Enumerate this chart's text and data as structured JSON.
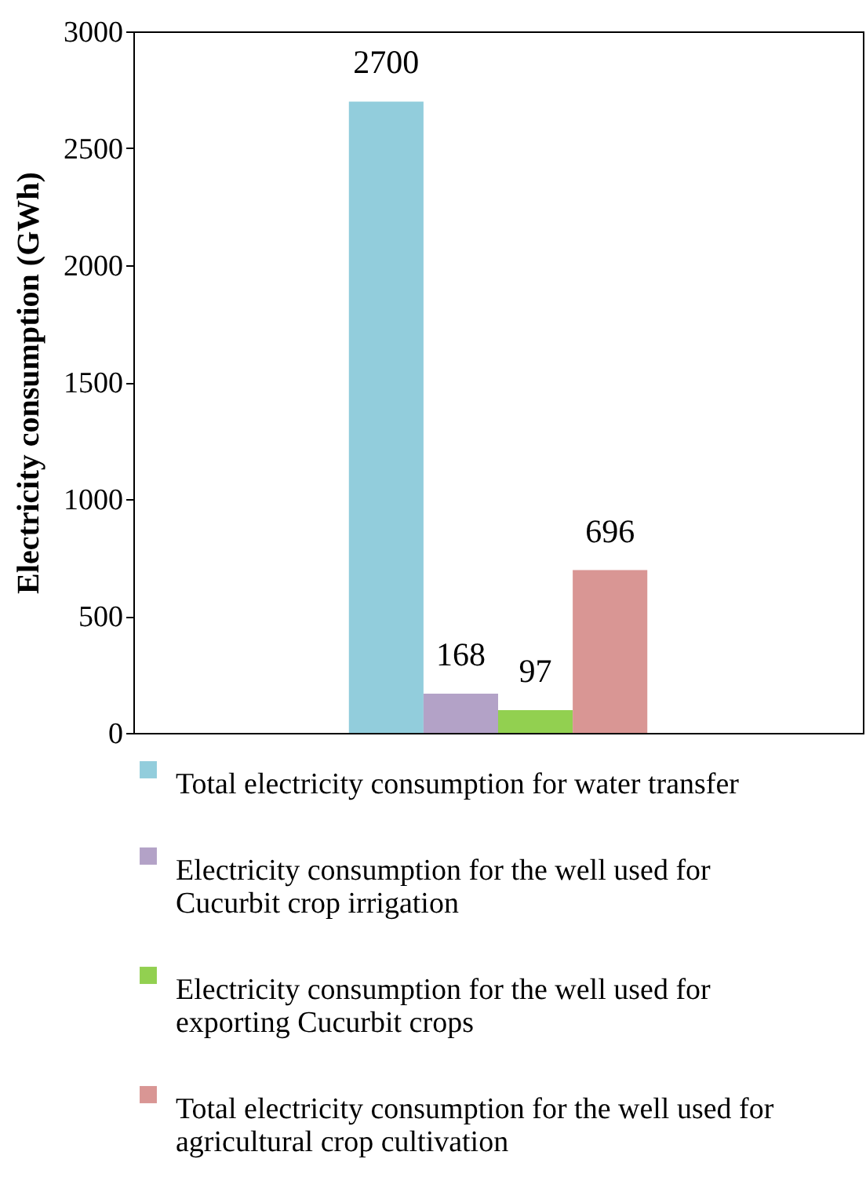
{
  "chart_data": {
    "type": "bar",
    "ylabel": "Electricity consumption (GWh)",
    "categories": [
      null
    ],
    "series": [
      {
        "name": "Total electricity consumption for water transfer",
        "color": "#92cddc",
        "values": [
          2700
        ]
      },
      {
        "name": "Electricity consumption for the well used for Cucurbit crop irrigation",
        "color": "#b3a2c7",
        "values": [
          168
        ]
      },
      {
        "name": "Electricity consumption for the well used for exporting Cucurbit crops",
        "color": "#92d050",
        "values": [
          97
        ]
      },
      {
        "name": "Total electricity consumption for the well used for agricultural crop cultivation",
        "color": "#d99694",
        "values": [
          696
        ]
      }
    ],
    "ylim": [
      0,
      3000
    ],
    "yticks": [
      0,
      500,
      1000,
      1500,
      2000,
      2500,
      3000
    ],
    "grid": false,
    "legend": "bottom",
    "data_labels": true
  }
}
